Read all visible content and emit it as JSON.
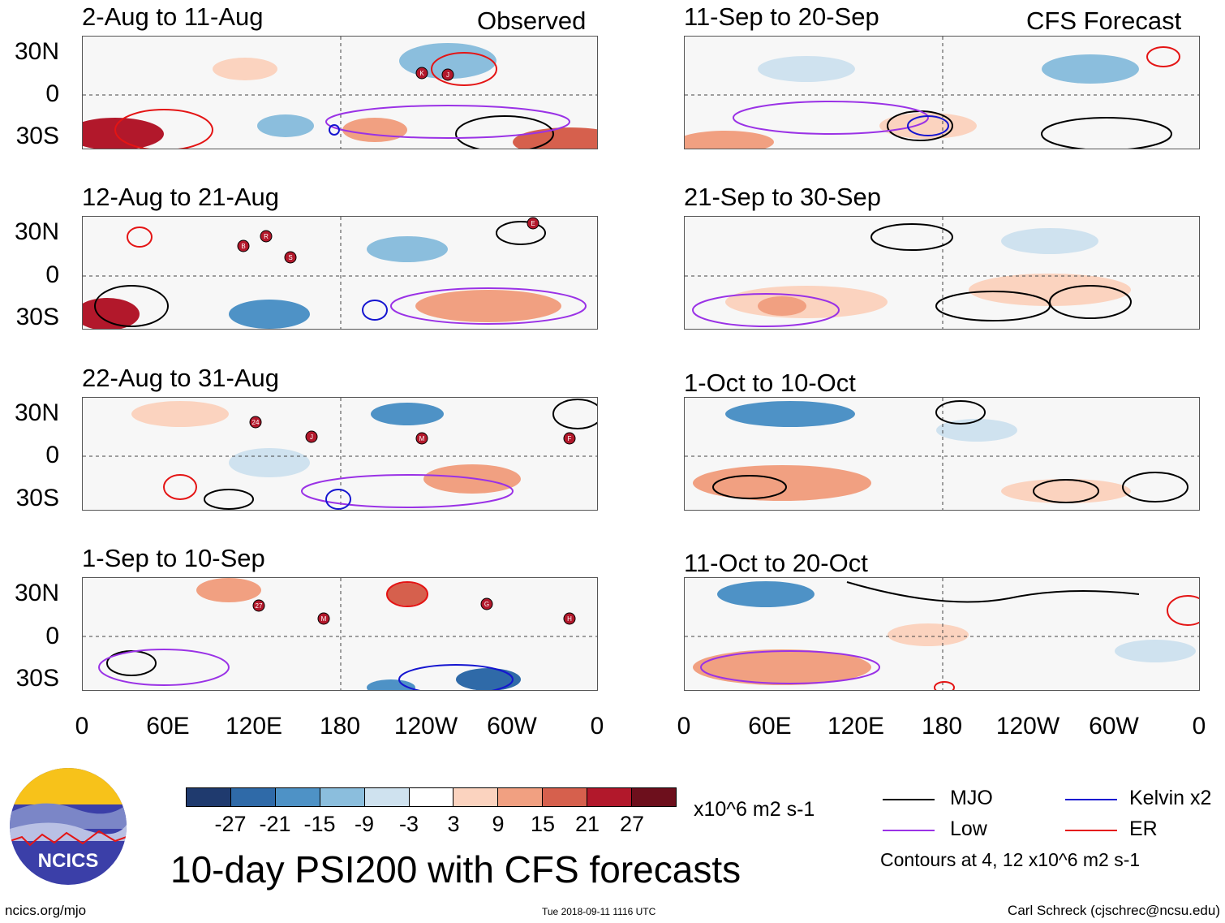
{
  "left_header_label": "Observed",
  "right_header_label": "CFS Forecast",
  "lat_labels": [
    "30N",
    "0",
    "30S"
  ],
  "lon_labels": [
    "0",
    "60E",
    "120E",
    "180",
    "120W",
    "60W",
    "0"
  ],
  "panels": [
    {
      "id": "p1",
      "column": "left",
      "title": "2-Aug to 11-Aug"
    },
    {
      "id": "p2",
      "column": "left",
      "title": "12-Aug to 21-Aug"
    },
    {
      "id": "p3",
      "column": "left",
      "title": "22-Aug to 31-Aug"
    },
    {
      "id": "p4",
      "column": "left",
      "title": "1-Sep to 10-Sep"
    },
    {
      "id": "p5",
      "column": "right",
      "title": "11-Sep to 20-Sep"
    },
    {
      "id": "p6",
      "column": "right",
      "title": "21-Sep to 30-Sep"
    },
    {
      "id": "p7",
      "column": "right",
      "title": "1-Oct to 10-Oct"
    },
    {
      "id": "p8",
      "column": "right",
      "title": "11-Oct to 20-Oct"
    }
  ],
  "colorbar": {
    "colors": [
      "#1f3a6e",
      "#2f6aa8",
      "#4e92c6",
      "#8bbedd",
      "#cfe2ef",
      "#ffffff",
      "#fbd3bf",
      "#f1a081",
      "#d6604d",
      "#b2182b",
      "#6d0f1c"
    ],
    "labels": [
      "-27",
      "-21",
      "-15",
      "-9",
      "-3",
      "3",
      "9",
      "15",
      "21",
      "27"
    ],
    "units": "x10^6 m2 s-1"
  },
  "legend": [
    {
      "label": "MJO",
      "color": "#000000"
    },
    {
      "label": "Kelvin x2",
      "color": "#1515d0"
    },
    {
      "label": "Low",
      "color": "#9a32e6"
    },
    {
      "label": "ER",
      "color": "#e41414"
    }
  ],
  "contours_note": "Contours at 4, 12 x10^6 m2 s-1",
  "logo_text": "NCICS",
  "main_title": "10-day PSI200 with CFS forecasts",
  "footer": {
    "website": "ncics.org/mjo",
    "timestamp": "Tue 2018-09-11 1116 UTC",
    "author": "Carl Schreck (cjschrec@ncsu.edu)"
  },
  "storm_markers": {
    "p1": [
      "K",
      "J"
    ],
    "p2": [
      "B",
      "R",
      "S",
      "E"
    ],
    "p3": [
      "24",
      "J",
      "M",
      "F"
    ],
    "p4": [
      "27",
      "M",
      "G",
      "H"
    ]
  }
}
